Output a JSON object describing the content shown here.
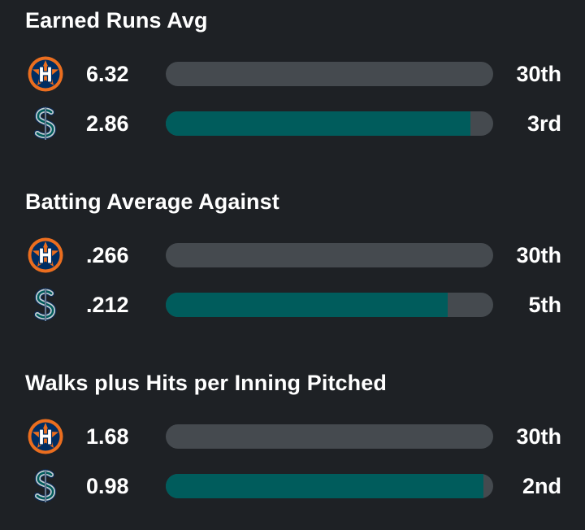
{
  "colors": {
    "background": "#1e2125",
    "track": "#454a4f",
    "highlight_fill": "#005c5c",
    "astros_navy": "#002d62",
    "astros_orange": "#eb6e1f",
    "mariners_navy": "#0c2c56",
    "mariners_teal": "#005c5c",
    "mariners_silver": "#c4ced4"
  },
  "stats": [
    {
      "title": "Earned Runs Avg",
      "teams": [
        {
          "team": "astros",
          "logo_icon": "astros-logo-icon",
          "value": "6.32",
          "rank": "30th",
          "bar_fill": null
        },
        {
          "team": "mariners",
          "logo_icon": "mariners-logo-icon",
          "value": "2.86",
          "rank": "3rd",
          "bar_fill": 0.93
        }
      ]
    },
    {
      "title": "Batting Average Against",
      "teams": [
        {
          "team": "astros",
          "logo_icon": "astros-logo-icon",
          "value": ".266",
          "rank": "30th",
          "bar_fill": null
        },
        {
          "team": "mariners",
          "logo_icon": "mariners-logo-icon",
          "value": ".212",
          "rank": "5th",
          "bar_fill": 0.86
        }
      ]
    },
    {
      "title": "Walks plus Hits per Inning Pitched",
      "teams": [
        {
          "team": "astros",
          "logo_icon": "astros-logo-icon",
          "value": "1.68",
          "rank": "30th",
          "bar_fill": null
        },
        {
          "team": "mariners",
          "logo_icon": "mariners-logo-icon",
          "value": "0.98",
          "rank": "2nd",
          "bar_fill": 0.97
        }
      ]
    }
  ]
}
